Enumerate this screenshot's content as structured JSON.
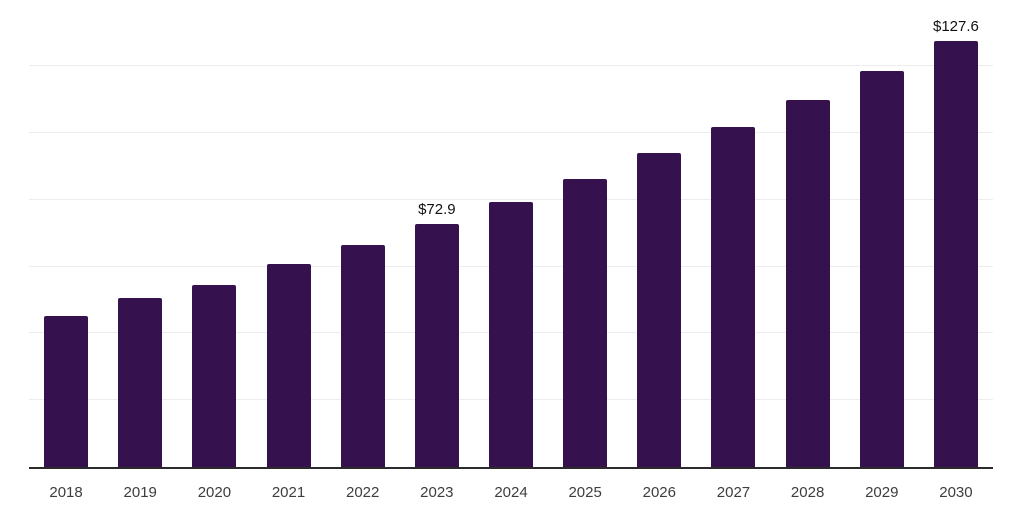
{
  "chart_data": {
    "type": "bar",
    "title": "",
    "xlabel": "",
    "ylabel": "",
    "categories": [
      "2018",
      "2019",
      "2020",
      "2021",
      "2022",
      "2023",
      "2024",
      "2025",
      "2026",
      "2027",
      "2028",
      "2029",
      "2030"
    ],
    "values": [
      45.3,
      50.6,
      54.4,
      60.8,
      66.4,
      72.9,
      79.3,
      86.3,
      94.0,
      101.8,
      109.8,
      118.7,
      127.6
    ],
    "data_labels": [
      null,
      null,
      null,
      null,
      null,
      "$72.9",
      null,
      null,
      null,
      null,
      null,
      null,
      "$127.6"
    ],
    "ylim": [
      0,
      140
    ],
    "grid_step": 20,
    "grid_on": true,
    "y_tick_labels_visible": false,
    "legend": "none",
    "bar_color": "#35124d",
    "gridline_color": "#ededed",
    "axis_line_color": "#2b2b2b",
    "tick_label_color": "#3d3d3d",
    "data_label_color": "#111111"
  }
}
